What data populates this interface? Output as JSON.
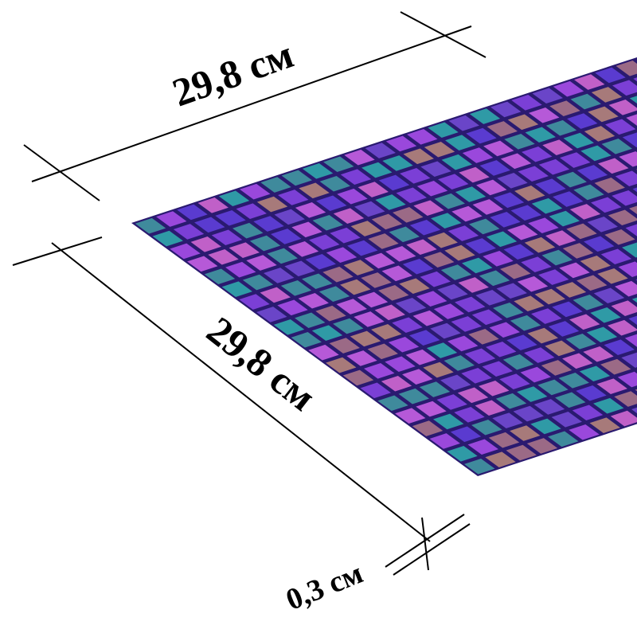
{
  "dimensions": {
    "width": "29,8 см",
    "length": "29,8 см",
    "thickness": "0,3 см"
  }
}
